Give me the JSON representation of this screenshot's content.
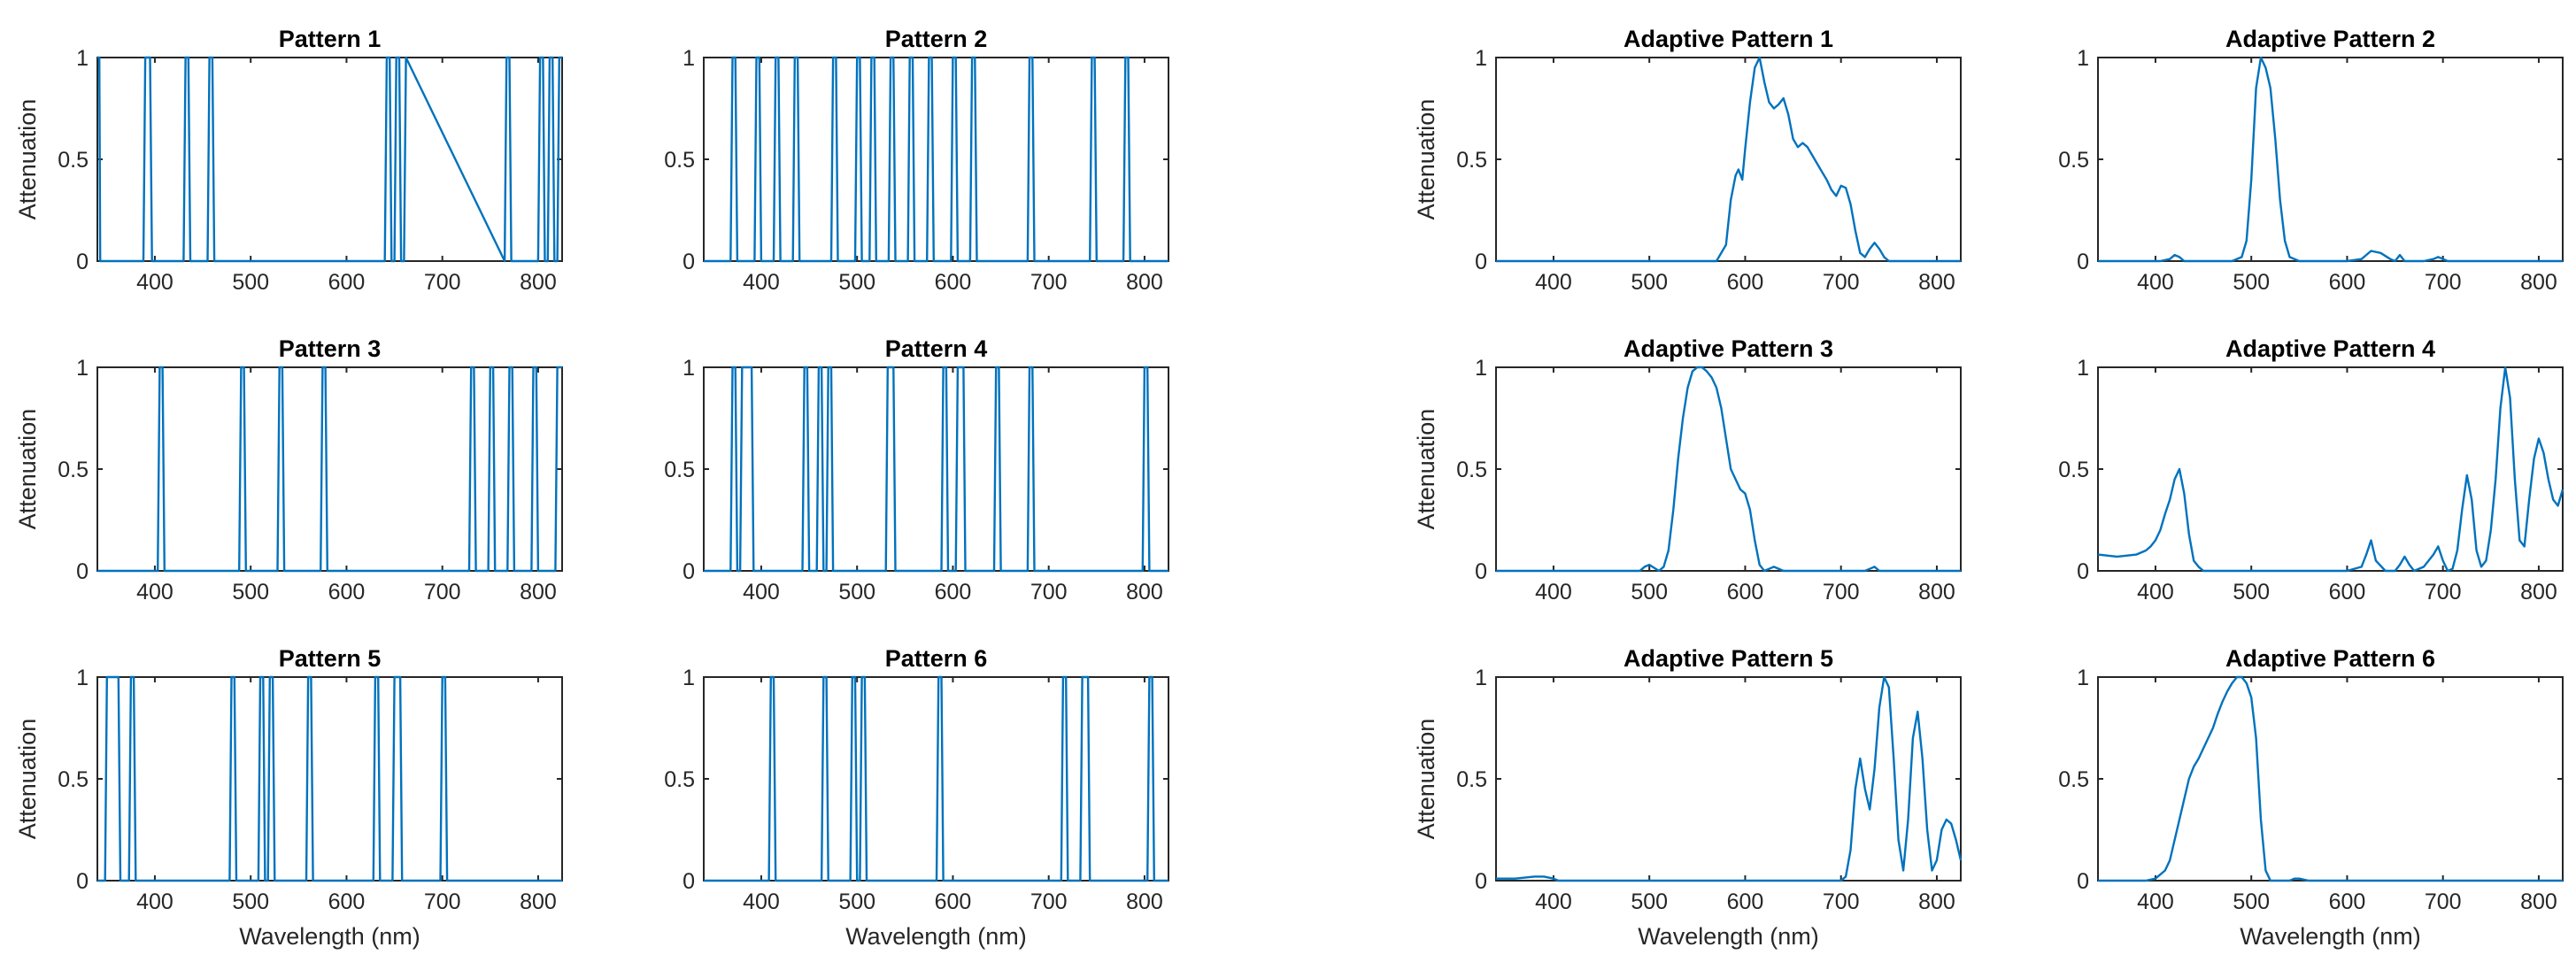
{
  "figure": {
    "line_color": "#0072BD"
  },
  "chart_data": [
    {
      "type": "line",
      "title": "Pattern 1",
      "xlabel": "",
      "ylabel": "Attenuation",
      "xlim": [
        340,
        825
      ],
      "ylim": [
        0,
        1
      ],
      "xticks": [
        400,
        500,
        600,
        700,
        800
      ],
      "yticks": [
        0,
        0.5,
        1
      ],
      "x": [
        340,
        342,
        343,
        345,
        388,
        390,
        395,
        397,
        430,
        432,
        435,
        437,
        455,
        457,
        460,
        462,
        640,
        642,
        645,
        647,
        650,
        652,
        655,
        657,
        660,
        662,
        765,
        767,
        770,
        772,
        800,
        802,
        805,
        807,
        810,
        812,
        815,
        817,
        820,
        822,
        825
      ],
      "y": [
        1,
        1,
        0,
        0,
        0,
        1,
        1,
        0,
        0,
        1,
        1,
        0,
        0,
        1,
        1,
        0,
        0,
        1,
        1,
        0,
        0,
        1,
        1,
        0,
        0,
        1,
        0,
        1,
        1,
        0,
        0,
        1,
        1,
        0,
        0,
        1,
        1,
        0,
        0,
        1,
        1
      ]
    },
    {
      "type": "line",
      "title": "Pattern 2",
      "xlabel": "",
      "ylabel": "",
      "xlim": [
        340,
        825
      ],
      "ylim": [
        0,
        1
      ],
      "xticks": [
        400,
        500,
        600,
        700,
        800
      ],
      "yticks": [
        0,
        0.5,
        1
      ],
      "x": [
        340,
        368,
        370,
        373,
        375,
        393,
        395,
        398,
        400,
        413,
        415,
        418,
        420,
        433,
        435,
        438,
        440,
        473,
        475,
        478,
        480,
        498,
        500,
        503,
        505,
        513,
        515,
        518,
        520,
        533,
        535,
        538,
        540,
        553,
        555,
        558,
        560,
        573,
        575,
        578,
        580,
        598,
        600,
        603,
        605,
        618,
        620,
        623,
        625,
        678,
        680,
        683,
        685,
        743,
        745,
        748,
        750,
        778,
        780,
        783,
        785,
        825
      ],
      "y": [
        0,
        0,
        1,
        1,
        0,
        0,
        1,
        1,
        0,
        0,
        1,
        1,
        0,
        0,
        1,
        1,
        0,
        0,
        1,
        1,
        0,
        0,
        1,
        1,
        0,
        0,
        1,
        1,
        0,
        0,
        1,
        1,
        0,
        0,
        1,
        1,
        0,
        0,
        1,
        1,
        0,
        0,
        1,
        1,
        0,
        0,
        1,
        1,
        0,
        0,
        1,
        1,
        0,
        0,
        1,
        1,
        0,
        0,
        1,
        1,
        0,
        0
      ]
    },
    {
      "type": "line",
      "title": "Pattern 3",
      "xlabel": "",
      "ylabel": "Attenuation",
      "xlim": [
        340,
        825
      ],
      "ylim": [
        0,
        1
      ],
      "xticks": [
        400,
        500,
        600,
        700,
        800
      ],
      "yticks": [
        0,
        0.5,
        1
      ],
      "x": [
        340,
        403,
        405,
        408,
        410,
        488,
        490,
        493,
        495,
        528,
        530,
        533,
        535,
        573,
        575,
        578,
        580,
        728,
        730,
        733,
        735,
        748,
        750,
        753,
        755,
        768,
        770,
        773,
        775,
        793,
        795,
        798,
        800,
        818,
        820,
        823,
        825
      ],
      "y": [
        0,
        0,
        1,
        1,
        0,
        0,
        1,
        1,
        0,
        0,
        1,
        1,
        0,
        0,
        1,
        1,
        0,
        0,
        1,
        1,
        0,
        0,
        1,
        1,
        0,
        0,
        1,
        1,
        0,
        0,
        1,
        1,
        0,
        0,
        1,
        1,
        1
      ]
    },
    {
      "type": "line",
      "title": "Pattern 4",
      "xlabel": "",
      "ylabel": "",
      "xlim": [
        340,
        825
      ],
      "ylim": [
        0,
        1
      ],
      "xticks": [
        400,
        500,
        600,
        700,
        800
      ],
      "yticks": [
        0,
        0.5,
        1
      ],
      "x": [
        340,
        368,
        370,
        373,
        375,
        378,
        380,
        390,
        392,
        443,
        445,
        448,
        450,
        458,
        460,
        463,
        465,
        468,
        470,
        473,
        475,
        530,
        532,
        538,
        540,
        588,
        590,
        593,
        595,
        603,
        605,
        611,
        613,
        643,
        645,
        648,
        650,
        678,
        680,
        683,
        685,
        798,
        800,
        803,
        805,
        825
      ],
      "y": [
        0,
        0,
        1,
        1,
        0,
        0,
        1,
        1,
        0,
        0,
        1,
        1,
        0,
        0,
        1,
        1,
        0,
        0,
        1,
        1,
        0,
        0,
        1,
        1,
        0,
        0,
        1,
        1,
        0,
        0,
        1,
        1,
        0,
        0,
        1,
        1,
        0,
        0,
        1,
        1,
        0,
        0,
        1,
        1,
        0,
        0
      ]
    },
    {
      "type": "line",
      "title": "Pattern 5",
      "xlabel": "Wavelength (nm)",
      "ylabel": "Attenuation",
      "xlim": [
        340,
        825
      ],
      "ylim": [
        0,
        1
      ],
      "xticks": [
        400,
        500,
        600,
        700,
        800
      ],
      "yticks": [
        0,
        0.5,
        1
      ],
      "x": [
        340,
        348,
        350,
        362,
        364,
        373,
        375,
        378,
        380,
        478,
        480,
        483,
        485,
        508,
        510,
        513,
        515,
        518,
        520,
        523,
        525,
        558,
        560,
        563,
        565,
        628,
        630,
        633,
        635,
        648,
        650,
        656,
        658,
        698,
        700,
        703,
        705,
        825
      ],
      "y": [
        0,
        0,
        1,
        1,
        0,
        0,
        1,
        1,
        0,
        0,
        1,
        1,
        0,
        0,
        1,
        1,
        0,
        0,
        1,
        1,
        0,
        0,
        1,
        1,
        0,
        0,
        1,
        1,
        0,
        0,
        1,
        1,
        0,
        0,
        1,
        1,
        0,
        0
      ]
    },
    {
      "type": "line",
      "title": "Pattern 6",
      "xlabel": "Wavelength (nm)",
      "ylabel": "",
      "xlim": [
        340,
        825
      ],
      "ylim": [
        0,
        1
      ],
      "xticks": [
        400,
        500,
        600,
        700,
        800
      ],
      "yticks": [
        0,
        0.5,
        1
      ],
      "x": [
        340,
        408,
        410,
        413,
        415,
        463,
        465,
        468,
        470,
        493,
        495,
        498,
        500,
        503,
        505,
        508,
        510,
        583,
        585,
        588,
        590,
        713,
        715,
        718,
        720,
        733,
        735,
        741,
        743,
        803,
        805,
        808,
        810,
        825
      ],
      "y": [
        0,
        0,
        1,
        1,
        0,
        0,
        1,
        1,
        0,
        0,
        1,
        1,
        0,
        0,
        1,
        1,
        0,
        0,
        1,
        1,
        0,
        0,
        1,
        1,
        0,
        0,
        1,
        1,
        0,
        0,
        1,
        1,
        0,
        0
      ]
    },
    {
      "type": "line",
      "title": "Adaptive Pattern 1",
      "xlabel": "",
      "ylabel": "Attenuation",
      "xlim": [
        340,
        825
      ],
      "ylim": [
        0,
        1
      ],
      "xticks": [
        400,
        500,
        600,
        700,
        800
      ],
      "yticks": [
        0,
        0.5,
        1
      ],
      "x": [
        340,
        570,
        580,
        585,
        590,
        593,
        597,
        600,
        605,
        610,
        615,
        620,
        625,
        630,
        635,
        640,
        645,
        650,
        655,
        660,
        665,
        670,
        675,
        680,
        685,
        690,
        695,
        700,
        705,
        710,
        715,
        720,
        725,
        730,
        735,
        740,
        745,
        750,
        825
      ],
      "y": [
        0,
        0,
        0.08,
        0.3,
        0.42,
        0.45,
        0.4,
        0.55,
        0.78,
        0.95,
        1.0,
        0.88,
        0.78,
        0.75,
        0.77,
        0.8,
        0.72,
        0.6,
        0.56,
        0.58,
        0.56,
        0.52,
        0.48,
        0.44,
        0.4,
        0.35,
        0.32,
        0.37,
        0.36,
        0.28,
        0.15,
        0.04,
        0.02,
        0.06,
        0.09,
        0.06,
        0.02,
        0,
        0
      ]
    },
    {
      "type": "line",
      "title": "Adaptive Pattern 2",
      "xlabel": "",
      "ylabel": "",
      "xlim": [
        340,
        825
      ],
      "ylim": [
        0,
        1
      ],
      "xticks": [
        400,
        500,
        600,
        700,
        800
      ],
      "yticks": [
        0,
        0.5,
        1
      ],
      "x": [
        340,
        405,
        415,
        420,
        425,
        430,
        440,
        480,
        490,
        495,
        500,
        505,
        510,
        515,
        520,
        525,
        530,
        535,
        540,
        550,
        560,
        600,
        615,
        625,
        635,
        645,
        650,
        655,
        660,
        665,
        680,
        690,
        695,
        700,
        705,
        720,
        825
      ],
      "y": [
        0,
        0,
        0.01,
        0.03,
        0.02,
        0,
        0,
        0,
        0.02,
        0.1,
        0.4,
        0.85,
        1.0,
        0.95,
        0.85,
        0.6,
        0.3,
        0.1,
        0.02,
        0,
        0,
        0,
        0.01,
        0.05,
        0.04,
        0.01,
        0,
        0.03,
        0,
        0,
        0,
        0.01,
        0.02,
        0.01,
        0,
        0,
        0
      ]
    },
    {
      "type": "line",
      "title": "Adaptive Pattern 3",
      "xlabel": "",
      "ylabel": "Attenuation",
      "xlim": [
        340,
        825
      ],
      "ylim": [
        0,
        1
      ],
      "xticks": [
        400,
        500,
        600,
        700,
        800
      ],
      "yticks": [
        0,
        0.5,
        1
      ],
      "x": [
        340,
        490,
        495,
        500,
        510,
        515,
        520,
        525,
        530,
        535,
        540,
        545,
        550,
        555,
        560,
        565,
        570,
        575,
        580,
        585,
        590,
        595,
        600,
        605,
        610,
        615,
        620,
        625,
        630,
        640,
        700,
        725,
        730,
        735,
        740,
        825
      ],
      "y": [
        0,
        0,
        0.02,
        0.03,
        0,
        0.02,
        0.1,
        0.3,
        0.55,
        0.75,
        0.9,
        0.98,
        1.0,
        1.0,
        0.98,
        0.95,
        0.9,
        0.8,
        0.65,
        0.5,
        0.45,
        0.4,
        0.38,
        0.3,
        0.15,
        0.03,
        0,
        0.01,
        0.02,
        0,
        0,
        0,
        0.01,
        0.02,
        0,
        0
      ]
    },
    {
      "type": "line",
      "title": "Adaptive Pattern 4",
      "xlabel": "",
      "ylabel": "",
      "xlim": [
        340,
        825
      ],
      "ylim": [
        0,
        1
      ],
      "xticks": [
        400,
        500,
        600,
        700,
        800
      ],
      "yticks": [
        0,
        0.5,
        1
      ],
      "x": [
        340,
        360,
        380,
        390,
        395,
        400,
        405,
        410,
        415,
        420,
        425,
        430,
        435,
        440,
        445,
        450,
        600,
        615,
        620,
        625,
        630,
        640,
        650,
        655,
        660,
        665,
        670,
        680,
        690,
        695,
        700,
        705,
        710,
        715,
        720,
        725,
        730,
        735,
        740,
        745,
        750,
        755,
        760,
        765,
        770,
        775,
        780,
        785,
        790,
        795,
        800,
        805,
        810,
        815,
        820,
        825
      ],
      "y": [
        0.08,
        0.07,
        0.08,
        0.1,
        0.12,
        0.15,
        0.2,
        0.28,
        0.35,
        0.45,
        0.5,
        0.38,
        0.18,
        0.05,
        0.02,
        0,
        0,
        0.02,
        0.08,
        0.15,
        0.05,
        0,
        0,
        0.03,
        0.07,
        0.03,
        0,
        0.02,
        0.08,
        0.12,
        0.05,
        0,
        0.01,
        0.1,
        0.3,
        0.47,
        0.35,
        0.1,
        0.02,
        0.05,
        0.2,
        0.45,
        0.8,
        1.0,
        0.85,
        0.45,
        0.15,
        0.12,
        0.35,
        0.55,
        0.65,
        0.58,
        0.45,
        0.35,
        0.32,
        0.4
      ]
    },
    {
      "type": "line",
      "title": "Adaptive Pattern 5",
      "xlabel": "Wavelength (nm)",
      "ylabel": "Attenuation",
      "xlim": [
        340,
        825
      ],
      "ylim": [
        0,
        1
      ],
      "xticks": [
        400,
        500,
        600,
        700,
        800
      ],
      "yticks": [
        0,
        0.5,
        1
      ],
      "x": [
        340,
        360,
        380,
        390,
        400,
        405,
        700,
        705,
        710,
        715,
        720,
        725,
        730,
        735,
        740,
        745,
        750,
        755,
        760,
        765,
        770,
        775,
        780,
        785,
        790,
        795,
        800,
        805,
        810,
        815,
        820,
        825
      ],
      "y": [
        0.01,
        0.01,
        0.02,
        0.02,
        0.01,
        0,
        0,
        0.02,
        0.15,
        0.45,
        0.6,
        0.45,
        0.35,
        0.55,
        0.85,
        1.0,
        0.95,
        0.6,
        0.2,
        0.05,
        0.3,
        0.7,
        0.83,
        0.6,
        0.25,
        0.05,
        0.1,
        0.25,
        0.3,
        0.28,
        0.2,
        0.1
      ]
    },
    {
      "type": "line",
      "title": "Adaptive Pattern 6",
      "xlabel": "Wavelength (nm)",
      "ylabel": "",
      "xlim": [
        340,
        825
      ],
      "ylim": [
        0,
        1
      ],
      "xticks": [
        400,
        500,
        600,
        700,
        800
      ],
      "yticks": [
        0,
        0.5,
        1
      ],
      "x": [
        340,
        390,
        400,
        410,
        415,
        420,
        425,
        430,
        435,
        440,
        445,
        450,
        455,
        460,
        465,
        470,
        475,
        480,
        485,
        490,
        495,
        500,
        505,
        510,
        515,
        520,
        530,
        540,
        545,
        550,
        560,
        825
      ],
      "y": [
        0,
        0,
        0.01,
        0.05,
        0.1,
        0.2,
        0.3,
        0.4,
        0.5,
        0.56,
        0.6,
        0.65,
        0.7,
        0.75,
        0.82,
        0.88,
        0.93,
        0.97,
        1.0,
        1.0,
        0.97,
        0.9,
        0.7,
        0.3,
        0.05,
        0,
        0,
        0,
        0.01,
        0.01,
        0,
        0
      ]
    }
  ]
}
